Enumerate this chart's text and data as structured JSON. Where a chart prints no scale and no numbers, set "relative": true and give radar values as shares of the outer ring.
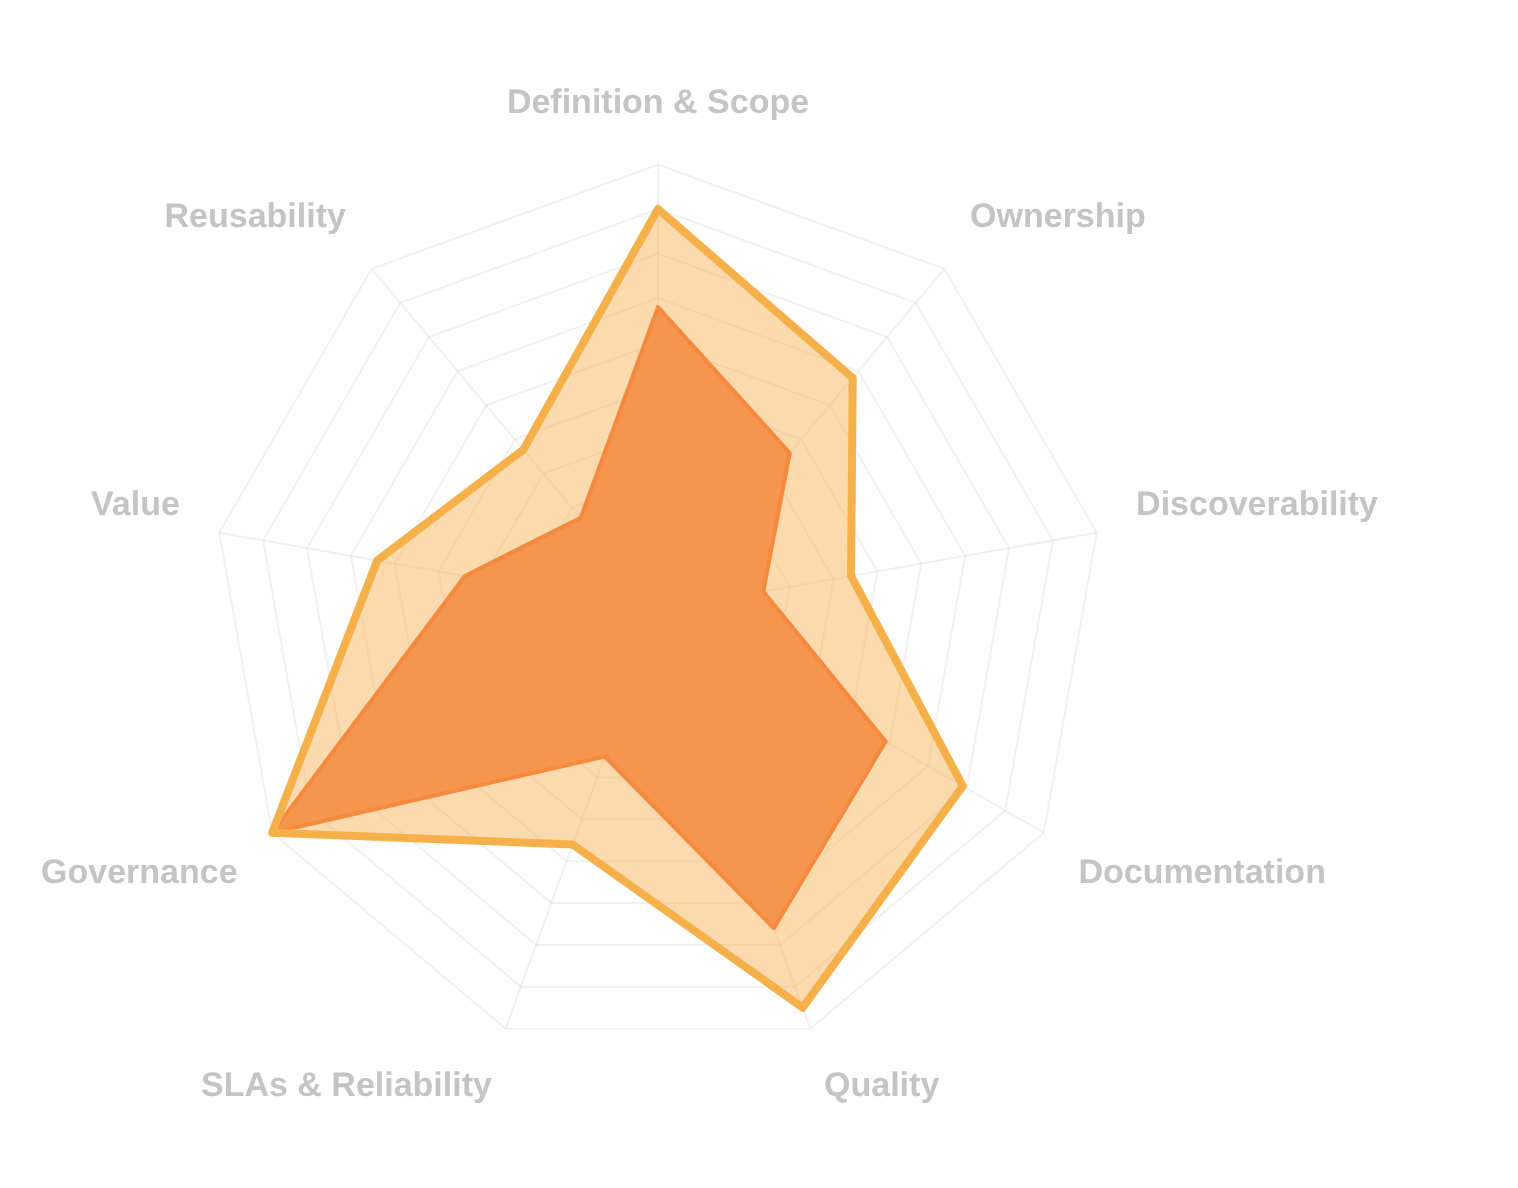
{
  "chart_data": {
    "type": "radar",
    "relative": true,
    "grid": true,
    "legend": false,
    "marker": "none",
    "categories": [
      "Definition & Scope",
      "Ownership",
      "Discoverability",
      "Documentation",
      "Quality",
      "SLAs & Reliability",
      "Governance",
      "Value",
      "Reusability"
    ],
    "series": [
      {
        "color": "#f6b04a",
        "values": [
          0.9,
          0.68,
          0.44,
          0.79,
          0.95,
          0.56,
          1.0,
          0.64,
          0.47
        ]
      },
      {
        "color": "#f56a35",
        "values": [
          0.68,
          0.46,
          0.24,
          0.59,
          0.76,
          0.35,
          1.0,
          0.44,
          0.27
        ]
      }
    ]
  }
}
